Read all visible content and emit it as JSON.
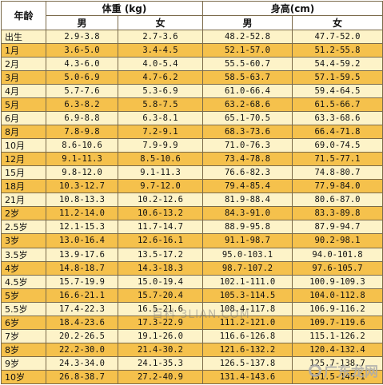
{
  "table": {
    "header": {
      "age": "年龄",
      "weight_group": "体重 (kg)",
      "height_group": "身高(cm)",
      "boy": "男",
      "girl": "女"
    },
    "rows": [
      [
        "出生",
        "2.9-3.8",
        "2.7-3.6",
        "48.2-52.8",
        "47.7-52.0"
      ],
      [
        "1月",
        "3.6-5.0",
        "3.4-4.5",
        "52.1-57.0",
        "51.2-55.8"
      ],
      [
        "2月",
        "4.3-6.0",
        "4.0-5.4",
        "55.5-60.7",
        "54.4-59.2"
      ],
      [
        "3月",
        "5.0-6.9",
        "4.7-6.2",
        "58.5-63.7",
        "57.1-59.5"
      ],
      [
        "4月",
        "5.7-7.6",
        "5.3-6.9",
        "61.0-66.4",
        "59.4-64.5"
      ],
      [
        "5月",
        "6.3-8.2",
        "5.8-7.5",
        "63.2-68.6",
        "61.5-66.7"
      ],
      [
        "6月",
        "6.9-8.8",
        "6.3-8.1",
        "65.1-70.5",
        "63.3-68.6"
      ],
      [
        "8月",
        "7.8-9.8",
        "7.2-9.1",
        "68.3-73.6",
        "66.4-71.8"
      ],
      [
        "10月",
        "8.6-10.6",
        "7.9-9.9",
        "71.0-76.3",
        "69.0-74.5"
      ],
      [
        "12月",
        "9.1-11.3",
        "8.5-10.6",
        "73.4-78.8",
        "71.5-77.1"
      ],
      [
        "15月",
        "9.8-12.0",
        "9.1-11.3",
        "76.6-82.3",
        "74.8-80.7"
      ],
      [
        "18月",
        "10.3-12.7",
        "9.7-12.0",
        "79.4-85.4",
        "77.9-84.0"
      ],
      [
        "21月",
        "10.8-13.3",
        "10.2-12.6",
        "81.9-88.4",
        "80.6-87.0"
      ],
      [
        "2岁",
        "11.2-14.0",
        "10.6-13.2",
        "84.3-91.0",
        "83.3-89.8"
      ],
      [
        "2.5岁",
        "12.1-15.3",
        "11.7-14.7",
        "88.9-95.8",
        "87.9-94.7"
      ],
      [
        "3岁",
        "13.0-16.4",
        "12.6-16.1",
        "91.1-98.7",
        "90.2-98.1"
      ],
      [
        "3.5岁",
        "13.9-17.6",
        "13.5-17.2",
        "95.0-103.1",
        "94.0-101.8"
      ],
      [
        "4岁",
        "14.8-18.7",
        "14.3-18.3",
        "98.7-107.2",
        "97.6-105.7"
      ],
      [
        "4.5岁",
        "15.7-19.9",
        "15.0-19.4",
        "102.1-111.0",
        "100.9-109.3"
      ],
      [
        "5岁",
        "16.6-21.1",
        "15.7-20.4",
        "105.3-114.5",
        "104.0-112.8"
      ],
      [
        "5.5岁",
        "17.4-22.3",
        "16.5-21.6",
        "108.4-117.8",
        "106.9-116.2"
      ],
      [
        "6岁",
        "18.4-23.6",
        "17.3-22.9",
        "111.2-121.0",
        "109.7-119.6"
      ],
      [
        "7岁",
        "20.2-26.5",
        "19.1-26.0",
        "116.6-126.8",
        "115.1-126.2"
      ],
      [
        "8岁",
        "22.2-30.0",
        "21.4-30.2",
        "121.6-132.2",
        "120.4-132.4"
      ],
      [
        "9岁",
        "24.3-34.0",
        "24.1-35.3",
        "126.5-137.8",
        "125.7-138.7"
      ],
      [
        "10岁",
        "26.8-38.7",
        "27.2-40.9",
        "131.4-143.6",
        "131.5-145.1"
      ]
    ]
  },
  "watermarks": {
    "center": "百科 3LIAN.COM",
    "brand": "广东龙网"
  },
  "colors": {
    "row_light": "#fdf3c8",
    "row_dark": "#f5c14c",
    "border": "#7a6a4a"
  }
}
